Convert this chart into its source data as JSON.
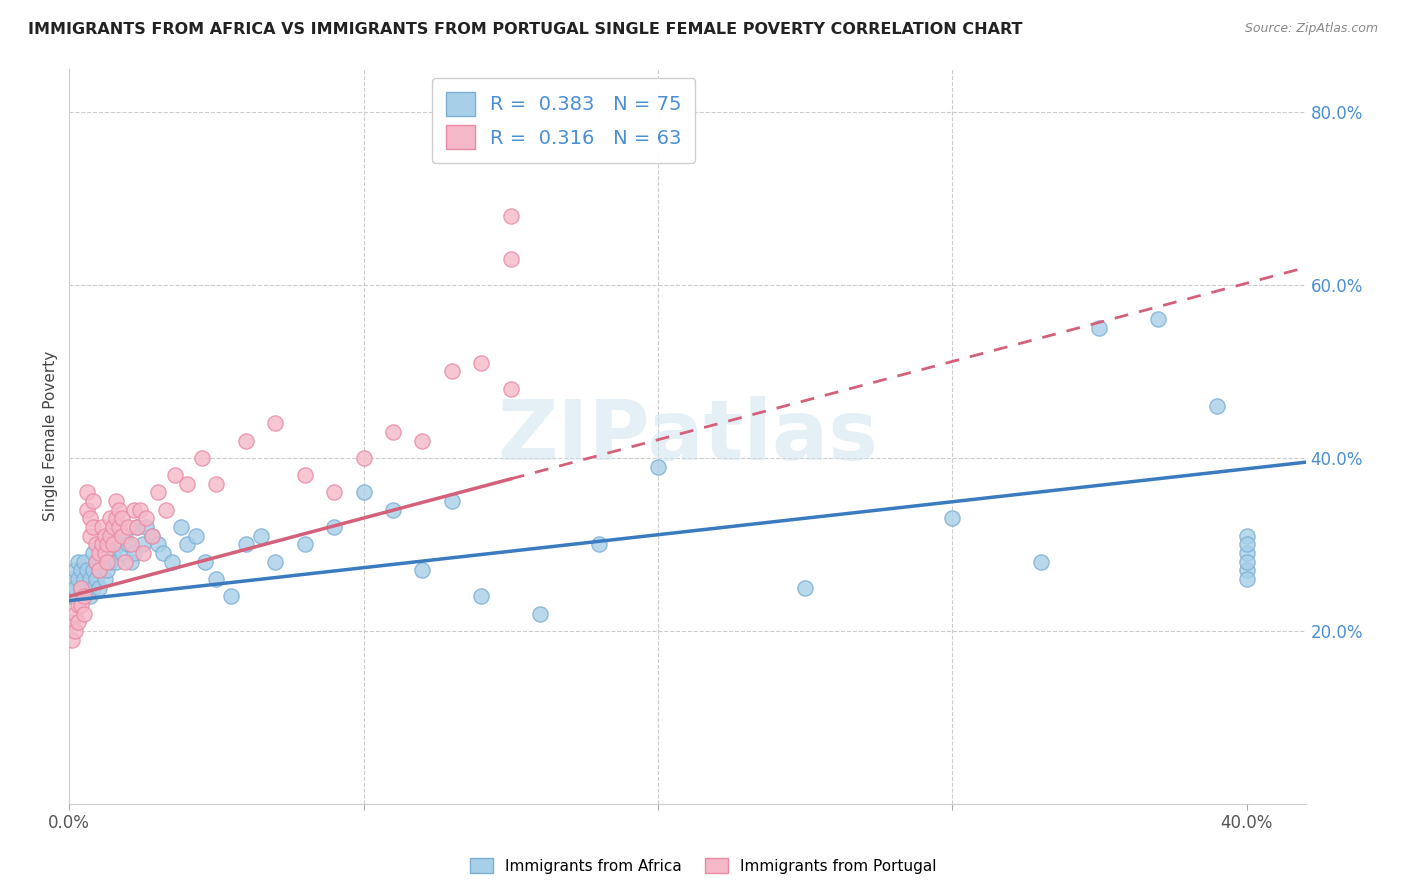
{
  "title": "IMMIGRANTS FROM AFRICA VS IMMIGRANTS FROM PORTUGAL SINGLE FEMALE POVERTY CORRELATION CHART",
  "source": "Source: ZipAtlas.com",
  "ylabel": "Single Female Poverty",
  "xlim": [
    0.0,
    0.42
  ],
  "ylim": [
    0.0,
    0.85
  ],
  "y_ticks_right": [
    0.2,
    0.4,
    0.6,
    0.8
  ],
  "y_tick_labels_right": [
    "20.0%",
    "40.0%",
    "60.0%",
    "80.0%"
  ],
  "africa_color": "#a8cfe8",
  "africa_edge": "#7bafd4",
  "portugal_color": "#f5b8c8",
  "portugal_edge": "#e88aa4",
  "trendline_africa_color": "#3a7abf",
  "trendline_portugal_color": "#d4607a",
  "R_africa": 0.383,
  "N_africa": 75,
  "R_portugal": 0.316,
  "N_portugal": 63,
  "legend_label_africa": "Immigrants from Africa",
  "legend_label_portugal": "Immigrants from Portugal",
  "watermark": "ZIPatlas",
  "africa_x": [
    0.001,
    0.001,
    0.002,
    0.002,
    0.003,
    0.003,
    0.004,
    0.004,
    0.005,
    0.005,
    0.005,
    0.006,
    0.006,
    0.007,
    0.007,
    0.008,
    0.008,
    0.008,
    0.009,
    0.009,
    0.01,
    0.01,
    0.011,
    0.012,
    0.012,
    0.013,
    0.013,
    0.014,
    0.015,
    0.015,
    0.016,
    0.017,
    0.018,
    0.019,
    0.02,
    0.021,
    0.022,
    0.023,
    0.025,
    0.026,
    0.028,
    0.03,
    0.032,
    0.035,
    0.038,
    0.04,
    0.043,
    0.046,
    0.05,
    0.055,
    0.06,
    0.065,
    0.07,
    0.08,
    0.09,
    0.1,
    0.11,
    0.12,
    0.13,
    0.14,
    0.16,
    0.18,
    0.2,
    0.25,
    0.3,
    0.33,
    0.35,
    0.37,
    0.39,
    0.4,
    0.4,
    0.4,
    0.4,
    0.4,
    0.4
  ],
  "africa_y": [
    0.26,
    0.24,
    0.25,
    0.27,
    0.26,
    0.28,
    0.25,
    0.27,
    0.24,
    0.26,
    0.28,
    0.25,
    0.27,
    0.24,
    0.26,
    0.25,
    0.27,
    0.29,
    0.26,
    0.28,
    0.25,
    0.27,
    0.28,
    0.26,
    0.29,
    0.27,
    0.3,
    0.28,
    0.29,
    0.31,
    0.28,
    0.3,
    0.29,
    0.31,
    0.3,
    0.28,
    0.29,
    0.32,
    0.3,
    0.32,
    0.31,
    0.3,
    0.29,
    0.28,
    0.32,
    0.3,
    0.31,
    0.28,
    0.26,
    0.24,
    0.3,
    0.31,
    0.28,
    0.3,
    0.32,
    0.36,
    0.34,
    0.27,
    0.35,
    0.24,
    0.22,
    0.3,
    0.39,
    0.25,
    0.33,
    0.28,
    0.55,
    0.56,
    0.46,
    0.29,
    0.31,
    0.27,
    0.26,
    0.28,
    0.3
  ],
  "portugal_x": [
    0.001,
    0.001,
    0.002,
    0.002,
    0.003,
    0.003,
    0.004,
    0.004,
    0.005,
    0.005,
    0.006,
    0.006,
    0.007,
    0.007,
    0.008,
    0.008,
    0.009,
    0.009,
    0.01,
    0.01,
    0.011,
    0.011,
    0.012,
    0.012,
    0.013,
    0.013,
    0.014,
    0.014,
    0.015,
    0.015,
    0.016,
    0.016,
    0.017,
    0.017,
    0.018,
    0.018,
    0.019,
    0.02,
    0.021,
    0.022,
    0.023,
    0.024,
    0.025,
    0.026,
    0.028,
    0.03,
    0.033,
    0.036,
    0.04,
    0.045,
    0.05,
    0.06,
    0.07,
    0.08,
    0.09,
    0.1,
    0.11,
    0.12,
    0.13,
    0.14,
    0.15,
    0.15,
    0.15
  ],
  "portugal_y": [
    0.21,
    0.19,
    0.22,
    0.2,
    0.23,
    0.21,
    0.25,
    0.23,
    0.22,
    0.24,
    0.36,
    0.34,
    0.33,
    0.31,
    0.35,
    0.32,
    0.3,
    0.28,
    0.29,
    0.27,
    0.3,
    0.32,
    0.29,
    0.31,
    0.28,
    0.3,
    0.31,
    0.33,
    0.3,
    0.32,
    0.33,
    0.35,
    0.32,
    0.34,
    0.31,
    0.33,
    0.28,
    0.32,
    0.3,
    0.34,
    0.32,
    0.34,
    0.29,
    0.33,
    0.31,
    0.36,
    0.34,
    0.38,
    0.37,
    0.4,
    0.37,
    0.42,
    0.44,
    0.38,
    0.36,
    0.4,
    0.43,
    0.42,
    0.5,
    0.51,
    0.48,
    0.63,
    0.68
  ],
  "africa_trend_x0": 0.0,
  "africa_trend_x1": 0.42,
  "africa_trend_y0": 0.235,
  "africa_trend_y1": 0.395,
  "portugal_trend_x0": 0.0,
  "portugal_trend_x1": 0.42,
  "portugal_trend_y0": 0.24,
  "portugal_trend_y1": 0.62
}
